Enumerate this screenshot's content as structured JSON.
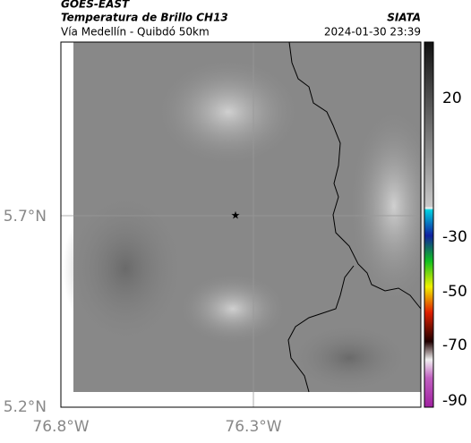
{
  "header": {
    "title": "GOES-EAST",
    "subtitle": "Temperatura de Brillo CH13",
    "region": "Vía Medellín - Quibdó 50km",
    "source": "SIATA",
    "timestamp": "2024-01-30 23:39"
  },
  "map": {
    "lat_ticks": [
      "5.7°N",
      "5.2°N"
    ],
    "lon_ticks": [
      "76.8°W",
      "76.3°W"
    ]
  },
  "colorbar": {
    "ticks": [
      "20",
      "-30",
      "-50",
      "-70",
      "-90"
    ]
  }
}
